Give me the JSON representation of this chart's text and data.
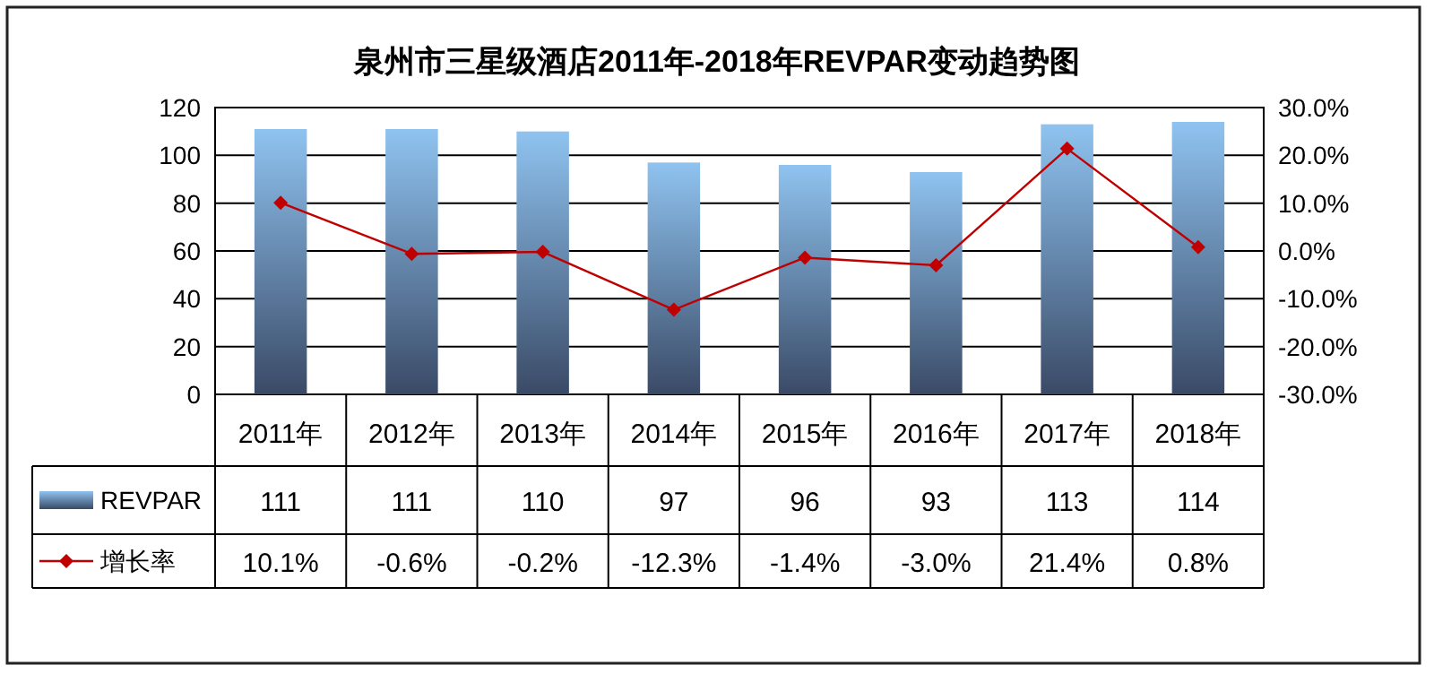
{
  "chart_data": {
    "type": "bar",
    "title": "泉州市三星级酒店2011年-2018年REVPAR变动趋势图",
    "categories": [
      "2011年",
      "2012年",
      "2013年",
      "2014年",
      "2015年",
      "2016年",
      "2017年",
      "2018年"
    ],
    "series": [
      {
        "name": "REVPAR",
        "color": "#8fc3f0",
        "values": [
          111,
          111,
          110,
          97,
          96,
          93,
          113,
          114
        ],
        "value_labels": [
          "111",
          "111",
          "110",
          "97",
          "96",
          "93",
          "113",
          "114"
        ]
      },
      {
        "name": "增长率",
        "type": "line",
        "axis": "y2",
        "color": "#c00000",
        "values": [
          10.1,
          -0.6,
          -0.2,
          -12.3,
          -1.4,
          -3.0,
          21.4,
          0.8
        ],
        "value_labels": [
          "10.1%",
          "-0.6%",
          "-0.2%",
          "-12.3%",
          "-1.4%",
          "-3.0%",
          "21.4%",
          "0.8%"
        ]
      }
    ],
    "ylim": [
      0,
      120
    ],
    "yticks": [
      0,
      20,
      40,
      60,
      80,
      100,
      120
    ],
    "y2lim": [
      -30,
      30
    ],
    "y2ticks": [
      {
        "value": -30,
        "label": "-30.0%"
      },
      {
        "value": -20,
        "label": "-20.0%"
      },
      {
        "value": -10,
        "label": "-10.0%"
      },
      {
        "value": 0,
        "label": "0.0%"
      },
      {
        "value": 10,
        "label": "10.0%"
      },
      {
        "value": 20,
        "label": "20.0%"
      },
      {
        "value": 30,
        "label": "30.0%"
      }
    ],
    "grid": "y",
    "marker": "diamond",
    "line_style": "solid",
    "legend": "bottom"
  }
}
